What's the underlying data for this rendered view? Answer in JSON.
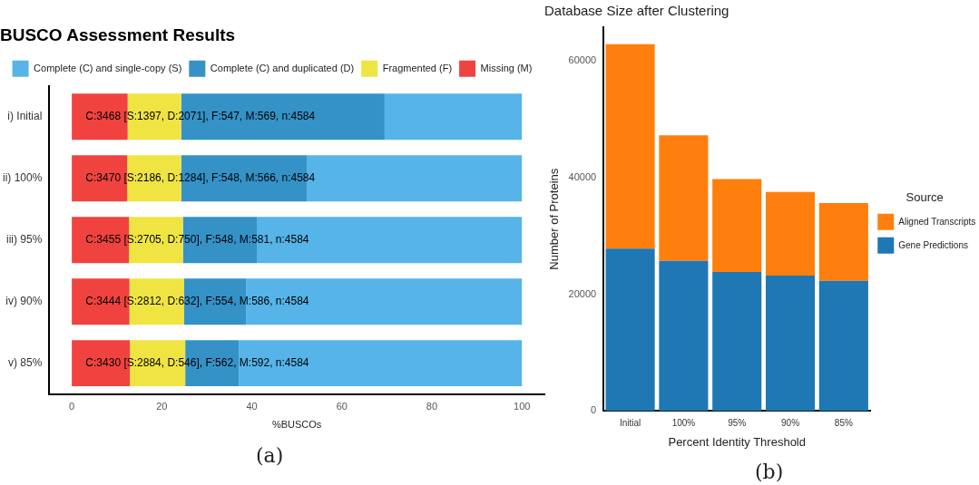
{
  "chart_data": [
    {
      "type": "bar",
      "title": "BUSCO Assessment Results",
      "orientation": "horizontal",
      "stacked": true,
      "categories": [
        "i) Initial",
        "ii) 100%",
        "iii) 95%",
        "iv) 90%",
        "v) 85%"
      ],
      "series": [
        {
          "name": "Missing (M)",
          "color": "#f0433f",
          "values": [
            12.4,
            12.3,
            12.7,
            12.8,
            12.9
          ]
        },
        {
          "name": "Fragmented (F)",
          "color": "#f0e442",
          "values": [
            11.9,
            12.0,
            12.0,
            12.1,
            12.3
          ]
        },
        {
          "name": "Complete (C) and duplicated (D)",
          "color": "#3492c7",
          "values": [
            45.2,
            28.0,
            16.4,
            13.8,
            11.9
          ]
        },
        {
          "name": "Complete (C) and single-copy (S)",
          "color": "#56b4e9",
          "values": [
            30.5,
            47.7,
            58.9,
            61.3,
            62.9
          ]
        }
      ],
      "xlim": [
        -5,
        105
      ],
      "xticks": [
        0,
        20,
        40,
        60,
        80,
        100
      ],
      "xlabel": "%BUSCOs",
      "grid": false,
      "legend": "top",
      "annotations": [
        {
          "text": "C:3468 [S:1397, D:2071], F:547, M:569, n:4584",
          "y": "i) Initial"
        },
        {
          "text": "C:3470 [S:2186, D:1284], F:548, M:566, n:4584",
          "y": "ii) 100%"
        },
        {
          "text": "C:3455 [S:2705, D:750], F:548, M:581, n:4584",
          "y": "iii) 95%"
        },
        {
          "text": "C:3444 [S:2812, D:632], F:554, M:586, n:4584",
          "y": "iv) 90%"
        },
        {
          "text": "C:3430 [S:2884, D:546], F:562, M:592, n:4584",
          "y": "v) 85%"
        },
        "(a)"
      ]
    },
    {
      "type": "bar",
      "title": "Database Size after Clustering",
      "stacked": true,
      "categories": [
        "Initial",
        "100%",
        "95%",
        "90%",
        "85%"
      ],
      "series": [
        {
          "name": "Gene Predictions",
          "color": "#1f77b4",
          "values": [
            27800,
            25700,
            23800,
            23200,
            22300
          ]
        },
        {
          "name": "Aligned Transcripts",
          "color": "#ff7f0e",
          "values": [
            35000,
            21500,
            15900,
            14300,
            13300
          ]
        }
      ],
      "ylim": [
        0,
        65700
      ],
      "yticks": [
        0,
        20000,
        40000,
        60000
      ],
      "xlabel": "Percent Identity Threshold",
      "ylabel": "Number of Proteins",
      "grid": false,
      "legend": "right",
      "legend_title": "Source",
      "annotations": [
        "(b)"
      ]
    }
  ]
}
